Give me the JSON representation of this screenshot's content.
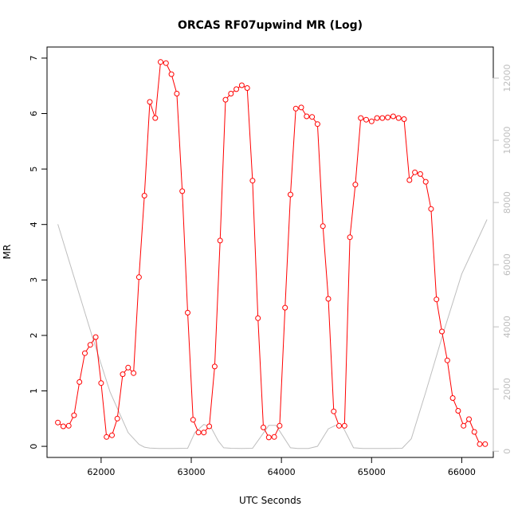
{
  "chart_data": {
    "type": "line",
    "title": "ORCAS RF07upwind MR (Log)",
    "xlabel": "UTC Seconds",
    "ylabel": "MR",
    "y2label": "",
    "xlim": [
      61400,
      66350
    ],
    "ylim": [
      -0.2,
      7.2
    ],
    "y2lim": [
      -200,
      13000
    ],
    "grid": false,
    "xticks": [
      62000,
      63000,
      64000,
      65000,
      66000
    ],
    "yticks": [
      0,
      1,
      2,
      3,
      4,
      5,
      6,
      7
    ],
    "y2ticks": [
      0,
      2000,
      4000,
      6000,
      8000,
      10000,
      12000
    ],
    "series": [
      {
        "style": "line-with-open-circles",
        "axis": "left",
        "color": "#ff0000",
        "x": [
          61520,
          61580,
          61640,
          61700,
          61760,
          61820,
          61880,
          61940,
          62000,
          62060,
          62120,
          62180,
          62240,
          62300,
          62360,
          62420,
          62480,
          62540,
          62600,
          62660,
          62720,
          62780,
          62840,
          62900,
          62960,
          63020,
          63080,
          63140,
          63200,
          63260,
          63320,
          63380,
          63440,
          63500,
          63560,
          63620,
          63680,
          63740,
          63800,
          63860,
          63920,
          63980,
          64040,
          64100,
          64160,
          64220,
          64280,
          64340,
          64400,
          64460,
          64520,
          64580,
          64640,
          64700,
          64760,
          64820,
          64880,
          64940,
          65000,
          65060,
          65120,
          65180,
          65240,
          65300,
          65360,
          65420,
          65480,
          65540,
          65600,
          65660,
          65720,
          65780,
          65840,
          65900,
          65960,
          66020,
          66080,
          66140,
          66200,
          66260
        ],
        "values": [
          0.43,
          0.36,
          0.37,
          0.56,
          1.16,
          1.68,
          1.83,
          1.97,
          1.14,
          0.17,
          0.2,
          0.5,
          1.3,
          1.42,
          1.32,
          3.05,
          4.52,
          6.21,
          5.92,
          6.93,
          6.91,
          6.71,
          6.36,
          4.6,
          2.41,
          0.48,
          0.25,
          0.25,
          0.36,
          1.44,
          3.71,
          6.25,
          6.36,
          6.44,
          6.51,
          6.46,
          4.79,
          2.31,
          0.34,
          0.16,
          0.17,
          0.37,
          2.5,
          4.54,
          6.09,
          6.11,
          5.95,
          5.94,
          5.81,
          3.97,
          2.66,
          0.63,
          0.37,
          0.37,
          3.77,
          4.72,
          5.92,
          5.89,
          5.86,
          5.92,
          5.92,
          5.93,
          5.95,
          5.92,
          5.9,
          4.8,
          4.94,
          4.91,
          4.77,
          4.28,
          2.65,
          2.07,
          1.55,
          0.87,
          0.64,
          0.37,
          0.49,
          0.26,
          0.04,
          0.04
        ]
      },
      {
        "style": "line",
        "axis": "right",
        "color": "#bebebe",
        "x": [
          61520,
          61700,
          61900,
          62100,
          62300,
          62420,
          62480,
          62540,
          62640,
          62800,
          62960,
          63040,
          63140,
          63220,
          63300,
          63360,
          63440,
          63560,
          63680,
          63760,
          63860,
          63940,
          64000,
          64100,
          64180,
          64300,
          64400,
          64520,
          64600,
          64680,
          64740,
          64800,
          64900,
          65000,
          65100,
          65200,
          65340,
          65440,
          65600,
          65800,
          66000,
          66280
        ],
        "values": [
          7300,
          5600,
          3700,
          1900,
          600,
          220,
          130,
          100,
          90,
          90,
          95,
          600,
          860,
          760,
          330,
          110,
          95,
          90,
          95,
          420,
          830,
          830,
          560,
          110,
          90,
          90,
          160,
          720,
          830,
          790,
          450,
          110,
          90,
          90,
          90,
          90,
          95,
          400,
          1900,
          3850,
          5700,
          7450
        ]
      }
    ]
  }
}
